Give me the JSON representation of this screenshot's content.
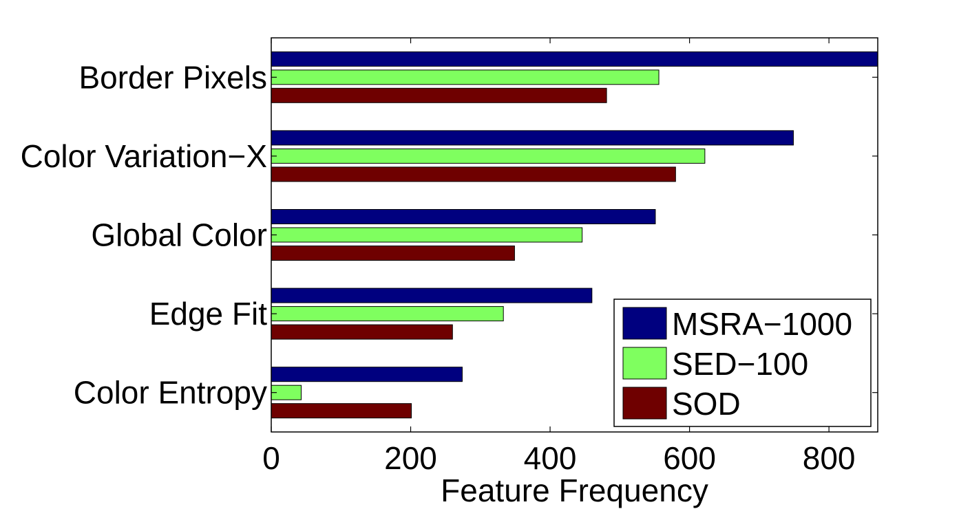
{
  "chart_data": {
    "type": "bar",
    "orientation": "horizontal",
    "title": "",
    "xlabel": "Feature Frequency",
    "ylabel": "",
    "xlim": [
      0,
      870
    ],
    "xticks": [
      0,
      200,
      400,
      600,
      800
    ],
    "xtick_labels": [
      "0",
      "200",
      "400",
      "600",
      "800"
    ],
    "categories": [
      "Border Pixels",
      "Color Variation−X",
      "Global Color",
      "Edge Fit",
      "Color Entropy"
    ],
    "series": [
      {
        "name": "MSRA−1000",
        "color": "#00007f",
        "values": [
          870,
          749,
          551,
          460,
          274
        ]
      },
      {
        "name": "SED−100",
        "color": "#7fff5f",
        "values": [
          556,
          622,
          446,
          333,
          43
        ]
      },
      {
        "name": "SOD",
        "color": "#6f0000",
        "values": [
          481,
          580,
          349,
          260,
          201
        ]
      }
    ],
    "grid": false,
    "legend_position": "bottom-right"
  }
}
